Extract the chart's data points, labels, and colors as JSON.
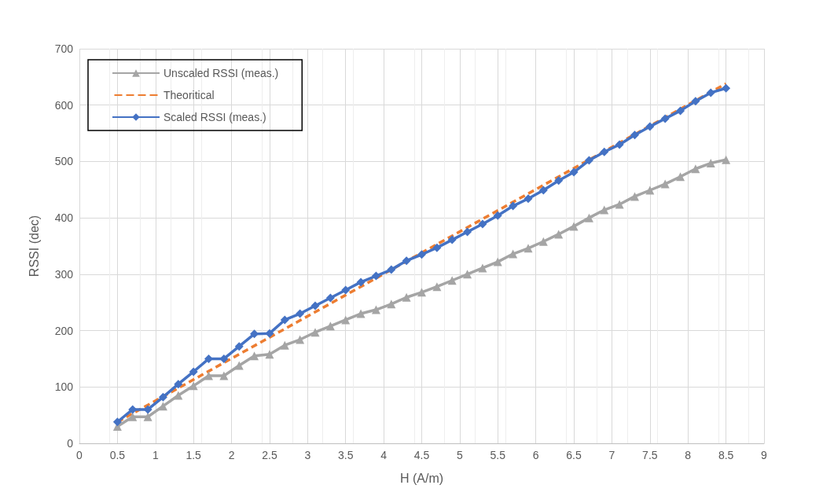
{
  "chart_data": {
    "type": "line",
    "xlabel": "H (A/m)",
    "ylabel": "RSSI (dec)",
    "x": [
      0.5,
      0.7,
      0.9,
      1.1,
      1.3,
      1.5,
      1.7,
      1.9,
      2.1,
      2.3,
      2.5,
      2.7,
      2.9,
      3.1,
      3.3,
      3.5,
      3.7,
      3.9,
      4.1,
      4.3,
      4.5,
      4.7,
      4.9,
      5.1,
      5.3,
      5.5,
      5.7,
      5.9,
      6.1,
      6.3,
      6.5,
      6.7,
      6.9,
      7.1,
      7.3,
      7.5,
      7.7,
      7.9,
      8.1,
      8.3,
      8.5
    ],
    "series": [
      {
        "name": "Unscaled RSSI (meas.)",
        "color": "#a5a5a5",
        "marker": "triangle",
        "values": [
          30,
          47,
          47,
          66,
          85,
          102,
          120,
          120,
          138,
          155,
          158,
          174,
          184,
          197,
          208,
          219,
          230,
          237,
          247,
          259,
          268,
          278,
          289,
          300,
          311,
          322,
          336,
          346,
          358,
          371,
          385,
          400,
          414,
          424,
          438,
          449,
          460,
          473,
          487,
          497,
          503
        ]
      },
      {
        "name": "Theoritical",
        "color": "#ed7d31",
        "marker": "none",
        "line_style": "dashed",
        "x": [
          0.5,
          8.5
        ],
        "values": [
          38,
          638
        ]
      },
      {
        "name": "Scaled RSSI (meas.)",
        "color": "#4472c4",
        "marker": "diamond",
        "values": [
          38,
          60,
          60,
          82,
          105,
          127,
          150,
          150,
          172,
          194,
          195,
          219,
          230,
          244,
          258,
          272,
          286,
          297,
          308,
          324,
          335,
          347,
          361,
          375,
          389,
          404,
          421,
          434,
          449,
          466,
          481,
          502,
          517,
          530,
          547,
          562,
          576,
          590,
          607,
          622,
          630
        ]
      }
    ],
    "xlim": [
      0,
      9
    ],
    "xticks": [
      0,
      0.5,
      1,
      1.5,
      2,
      2.5,
      3,
      3.5,
      4,
      4.5,
      5,
      5.5,
      6,
      6.5,
      7,
      7.5,
      8,
      8.5,
      9
    ],
    "ylim": [
      0,
      700
    ],
    "yticks": [
      0,
      100,
      200,
      300,
      400,
      500,
      600,
      700
    ],
    "grid": true,
    "legend": "top left",
    "line_style": "solid"
  }
}
